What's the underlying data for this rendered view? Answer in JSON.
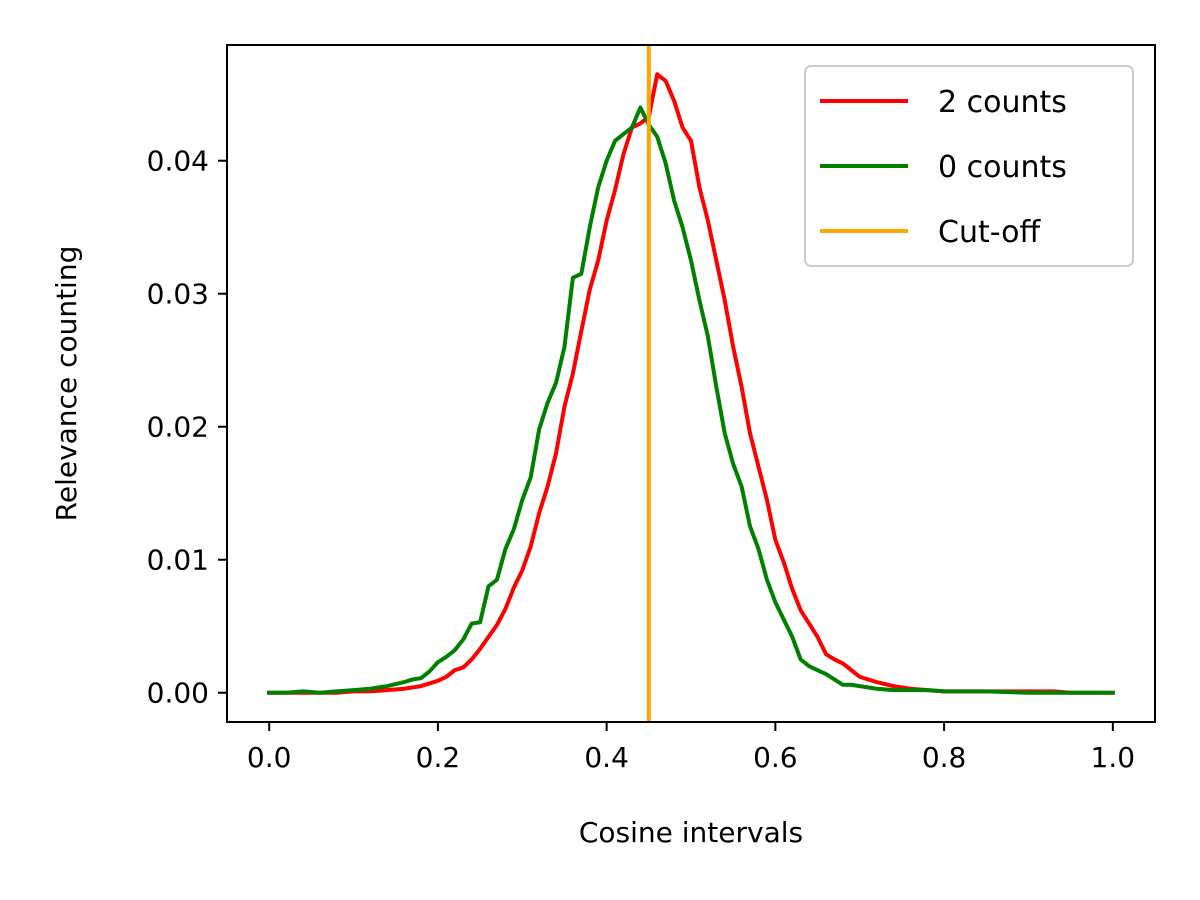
{
  "chart_data": {
    "type": "line",
    "title": "",
    "xlabel": "Cosine intervals",
    "ylabel": "Relevance counting",
    "xlim": [
      -0.05,
      1.05
    ],
    "ylim": [
      -0.0022,
      0.0487
    ],
    "xticks": [
      0.0,
      0.2,
      0.4,
      0.6,
      0.8,
      1.0
    ],
    "xtick_labels": [
      "0.0",
      "0.2",
      "0.4",
      "0.6",
      "0.8",
      "1.0"
    ],
    "yticks": [
      0.0,
      0.01,
      0.02,
      0.03,
      0.04
    ],
    "ytick_labels": [
      "0.00",
      "0.01",
      "0.02",
      "0.03",
      "0.04"
    ],
    "grid": false,
    "legend_position": "top-right",
    "series": [
      {
        "name": "2 counts",
        "color": "#ff0000",
        "x": [
          0.0,
          0.02,
          0.04,
          0.06,
          0.08,
          0.1,
          0.12,
          0.14,
          0.16,
          0.17,
          0.18,
          0.19,
          0.2,
          0.21,
          0.22,
          0.23,
          0.24,
          0.25,
          0.26,
          0.27,
          0.28,
          0.29,
          0.3,
          0.31,
          0.32,
          0.33,
          0.34,
          0.35,
          0.36,
          0.37,
          0.38,
          0.39,
          0.4,
          0.41,
          0.42,
          0.43,
          0.44,
          0.45,
          0.46,
          0.47,
          0.48,
          0.49,
          0.5,
          0.51,
          0.52,
          0.53,
          0.54,
          0.55,
          0.56,
          0.57,
          0.58,
          0.59,
          0.6,
          0.61,
          0.62,
          0.63,
          0.64,
          0.65,
          0.66,
          0.67,
          0.68,
          0.69,
          0.7,
          0.72,
          0.74,
          0.76,
          0.78,
          0.8,
          0.85,
          0.9,
          0.93,
          0.95,
          1.0
        ],
        "values": [
          0.0,
          0.0,
          0.0,
          0.0,
          0.0,
          0.0001,
          0.0001,
          0.0002,
          0.0003,
          0.0004,
          0.0005,
          0.0007,
          0.0009,
          0.0012,
          0.0017,
          0.0019,
          0.0025,
          0.0033,
          0.0042,
          0.0051,
          0.0063,
          0.0079,
          0.0092,
          0.011,
          0.0135,
          0.0155,
          0.018,
          0.0215,
          0.024,
          0.0272,
          0.0303,
          0.0325,
          0.0355,
          0.0378,
          0.0405,
          0.0425,
          0.0428,
          0.0433,
          0.0465,
          0.046,
          0.0445,
          0.0425,
          0.0415,
          0.038,
          0.0355,
          0.0325,
          0.0295,
          0.026,
          0.023,
          0.0195,
          0.017,
          0.0145,
          0.0115,
          0.0098,
          0.0078,
          0.0062,
          0.0052,
          0.0042,
          0.0029,
          0.0025,
          0.0022,
          0.0017,
          0.0012,
          0.0008,
          0.0005,
          0.0003,
          0.0002,
          0.0001,
          0.0001,
          0.0001,
          0.0001,
          0.0,
          0.0
        ]
      },
      {
        "name": "0 counts",
        "color": "#008000",
        "x": [
          0.0,
          0.02,
          0.04,
          0.06,
          0.08,
          0.1,
          0.12,
          0.14,
          0.16,
          0.17,
          0.18,
          0.19,
          0.2,
          0.21,
          0.22,
          0.23,
          0.24,
          0.25,
          0.26,
          0.27,
          0.28,
          0.29,
          0.3,
          0.31,
          0.32,
          0.33,
          0.34,
          0.35,
          0.36,
          0.37,
          0.38,
          0.39,
          0.4,
          0.41,
          0.42,
          0.43,
          0.44,
          0.45,
          0.46,
          0.47,
          0.48,
          0.49,
          0.5,
          0.51,
          0.52,
          0.53,
          0.54,
          0.55,
          0.56,
          0.57,
          0.58,
          0.59,
          0.6,
          0.61,
          0.62,
          0.63,
          0.64,
          0.65,
          0.66,
          0.67,
          0.68,
          0.69,
          0.7,
          0.72,
          0.74,
          0.76,
          0.78,
          0.8,
          0.85,
          0.9,
          0.93,
          0.95,
          1.0
        ],
        "values": [
          0.0,
          0.0,
          0.0001,
          0.0,
          0.0001,
          0.0002,
          0.0003,
          0.0005,
          0.0008,
          0.001,
          0.0011,
          0.0016,
          0.0023,
          0.0027,
          0.0032,
          0.004,
          0.0052,
          0.0053,
          0.008,
          0.0085,
          0.0108,
          0.0123,
          0.0145,
          0.0162,
          0.0198,
          0.0218,
          0.0233,
          0.026,
          0.0312,
          0.0315,
          0.035,
          0.038,
          0.04,
          0.0415,
          0.042,
          0.0425,
          0.044,
          0.0427,
          0.0418,
          0.0398,
          0.037,
          0.035,
          0.0325,
          0.0295,
          0.0268,
          0.023,
          0.0195,
          0.0172,
          0.0155,
          0.0125,
          0.0108,
          0.0085,
          0.0068,
          0.0055,
          0.0042,
          0.0025,
          0.002,
          0.0017,
          0.0014,
          0.001,
          0.0006,
          0.0006,
          0.0005,
          0.0003,
          0.0002,
          0.0002,
          0.0002,
          0.0001,
          0.0001,
          0.0,
          0.0,
          0.0,
          0.0
        ]
      }
    ],
    "cutoff": {
      "name": "Cut-off",
      "x": 0.45,
      "color": "#ffa500"
    }
  }
}
